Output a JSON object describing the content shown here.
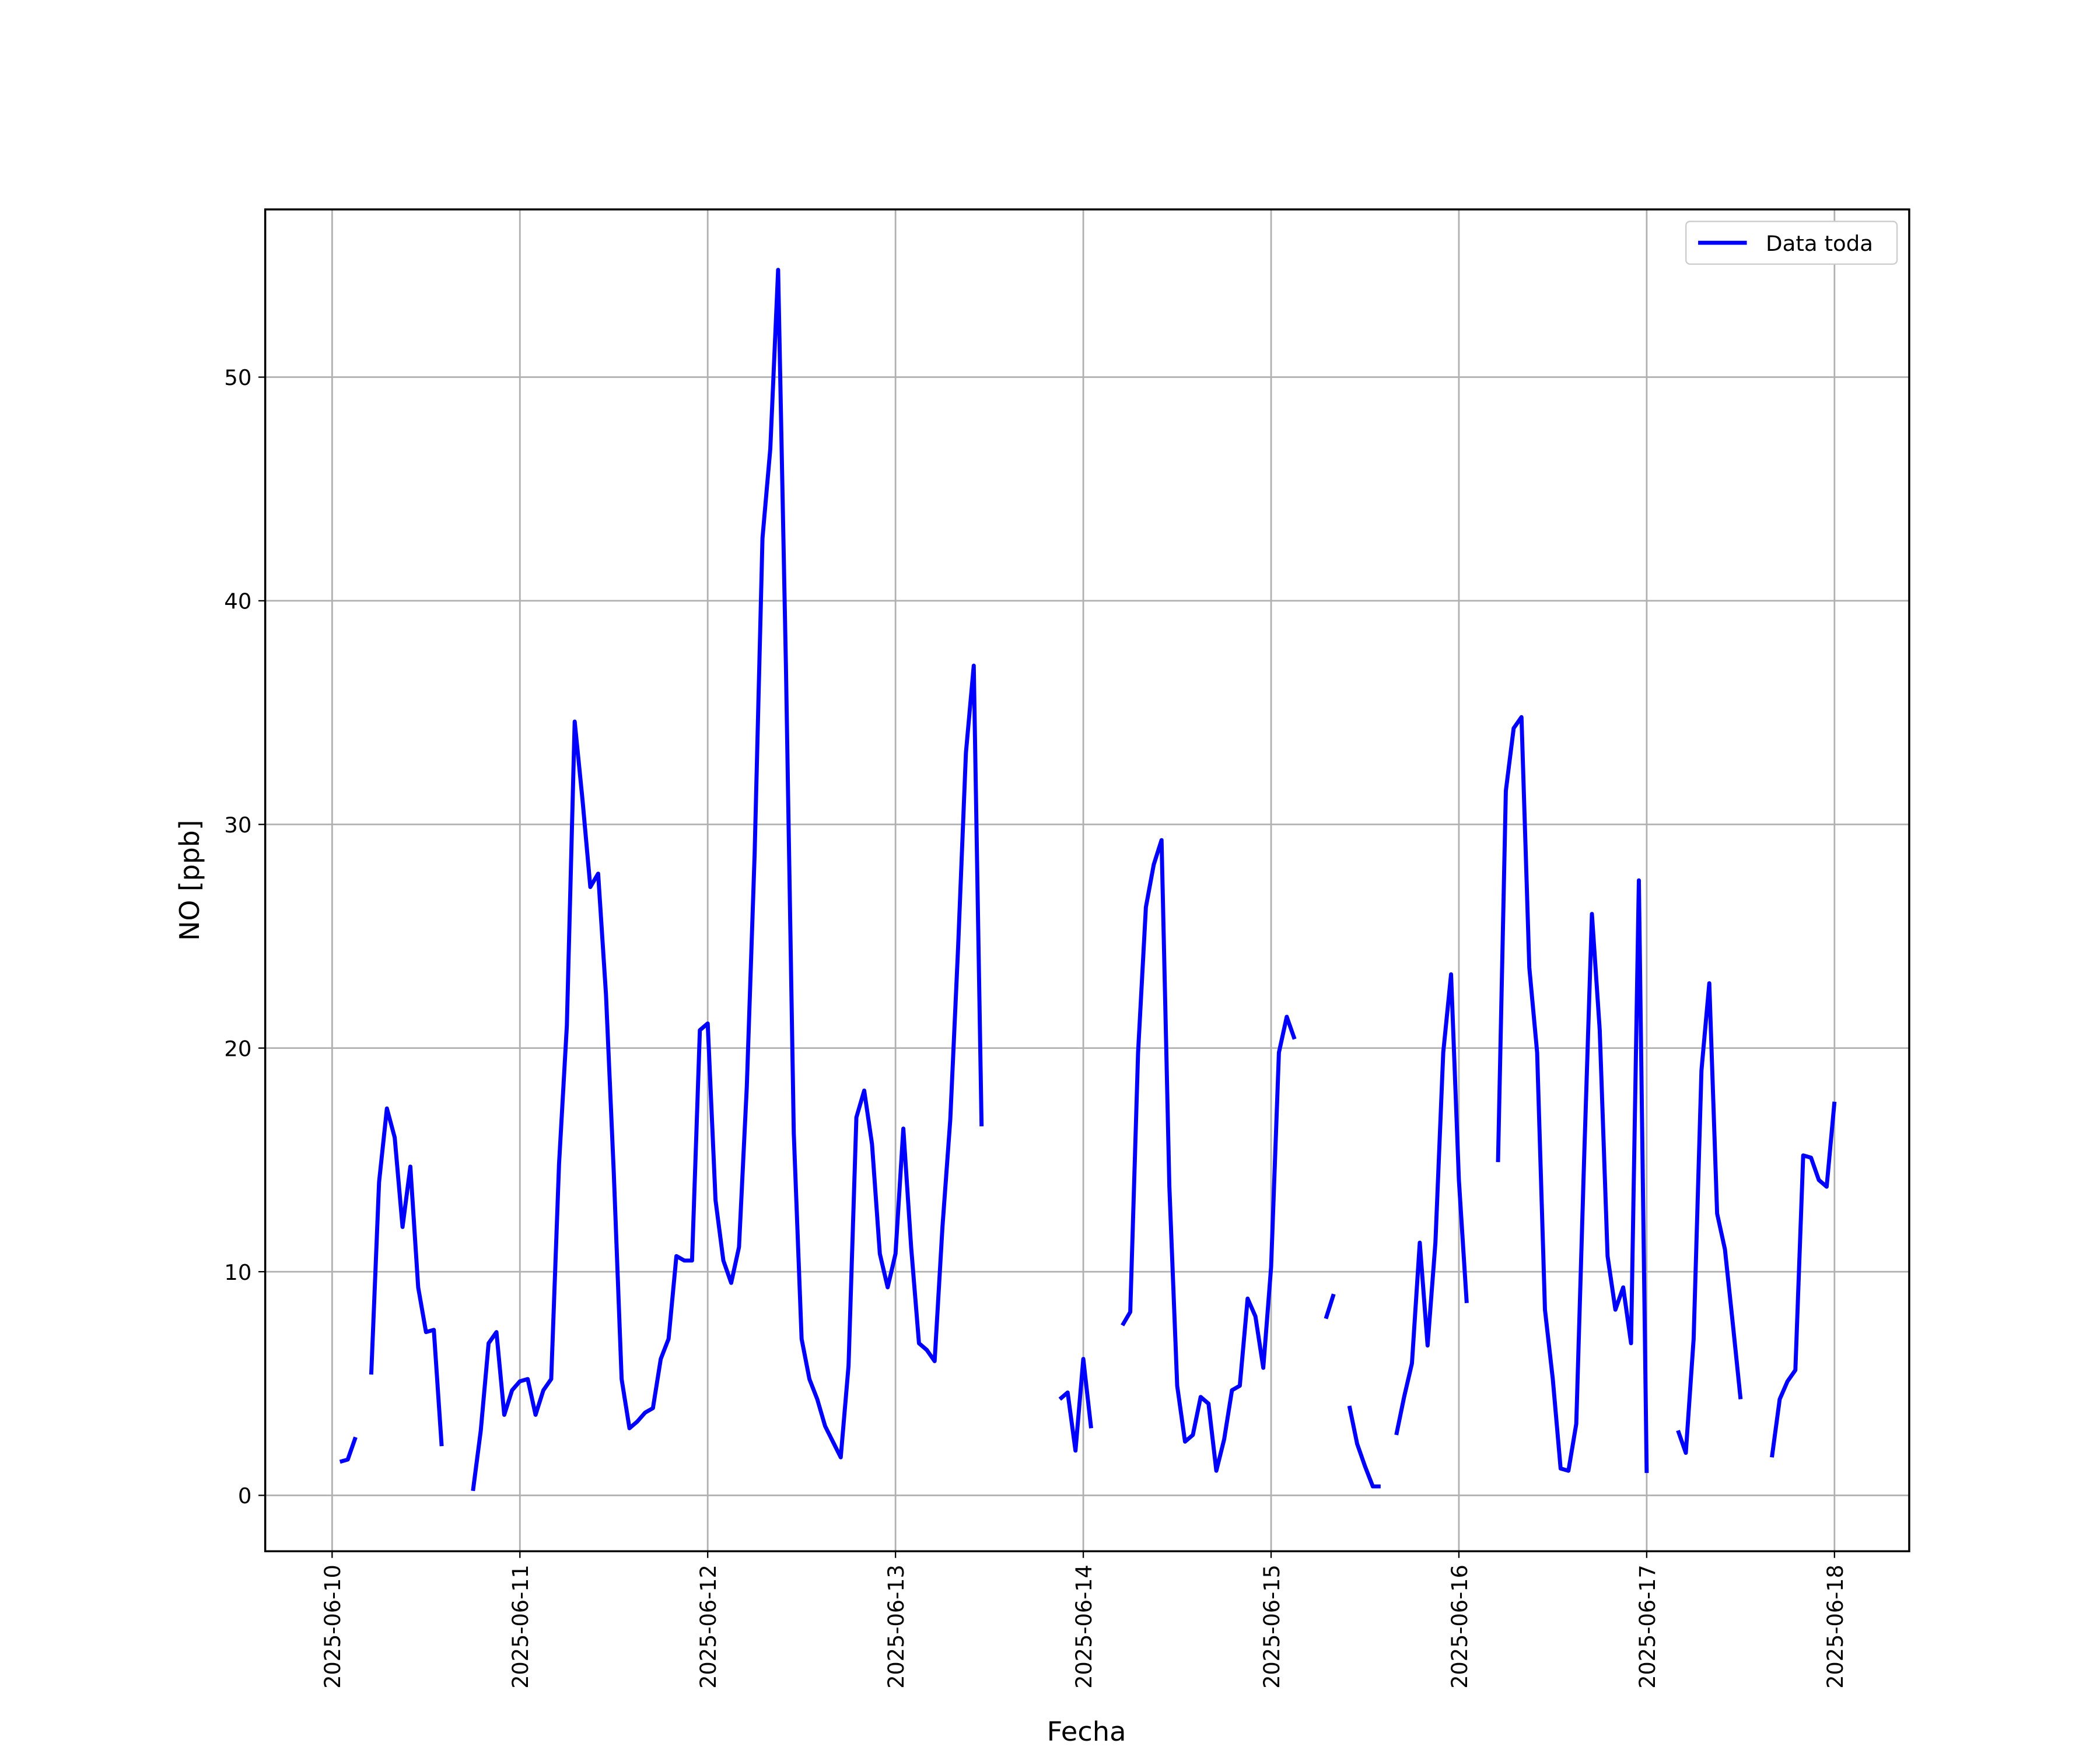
{
  "chart_data": {
    "type": "line",
    "xlabel": "Fecha",
    "ylabel": "NO [ppb]",
    "x": [
      1,
      2,
      3,
      4,
      5,
      6,
      7,
      8,
      9,
      10,
      11,
      12,
      13,
      14,
      15,
      16,
      17,
      18,
      19,
      20,
      21,
      22,
      23,
      24,
      25,
      26,
      27,
      28,
      29,
      30,
      31,
      32,
      33,
      34,
      35,
      36,
      37,
      38,
      39,
      40,
      41,
      42,
      43,
      44,
      45,
      46,
      47,
      48,
      49,
      50,
      51,
      52,
      53,
      54,
      55,
      56,
      57,
      58,
      59,
      60,
      61,
      62,
      63,
      64,
      65,
      66,
      67,
      68,
      69,
      70,
      71,
      72,
      73,
      74,
      75,
      76,
      77,
      78,
      79,
      80,
      81,
      82,
      83,
      84,
      85,
      86,
      87,
      88,
      89,
      90,
      91,
      92,
      93,
      94,
      95,
      96,
      97,
      98,
      99,
      100,
      101,
      102,
      103,
      104,
      105,
      106,
      107,
      108,
      109,
      110,
      111,
      112,
      113,
      114,
      115,
      116,
      117,
      118,
      119,
      120,
      121,
      122,
      123,
      124,
      125,
      126,
      127,
      128,
      129,
      130,
      131,
      132,
      133,
      134,
      135,
      136,
      137,
      138,
      139,
      140,
      141,
      142,
      143,
      144,
      145,
      146,
      147,
      148,
      149,
      150,
      151,
      152,
      153,
      154,
      155,
      156,
      157,
      158,
      159,
      160,
      161,
      162,
      163,
      164,
      165,
      166,
      167,
      168,
      169,
      170,
      171,
      172,
      173,
      174,
      175,
      176,
      177,
      178,
      179,
      180,
      181,
      182,
      183,
      184,
      185,
      186,
      187,
      188,
      189,
      190,
      191,
      192
    ],
    "series": [
      {
        "name": "Data toda",
        "color": "#0000ff",
        "values": [
          1.5,
          1.6,
          2.6,
          null,
          5.4,
          14.0,
          17.3,
          16.0,
          12.0,
          14.7,
          9.3,
          7.3,
          7.4,
          2.2,
          null,
          null,
          null,
          0.2,
          2.9,
          6.8,
          7.3,
          3.6,
          4.7,
          5.1,
          5.2,
          3.6,
          4.7,
          5.2,
          14.8,
          21.0,
          34.6,
          31.1,
          27.2,
          27.8,
          22.4,
          14.4,
          5.2,
          3.0,
          3.3,
          3.7,
          3.9,
          6.1,
          7.0,
          10.7,
          10.5,
          10.5,
          20.8,
          21.1,
          13.2,
          10.5,
          9.5,
          11.1,
          18.3,
          28.7,
          42.8,
          46.8,
          54.8,
          37.0,
          16.2,
          7.0,
          5.2,
          4.3,
          3.1,
          2.4,
          1.7,
          5.8,
          16.9,
          18.1,
          15.7,
          10.8,
          9.3,
          10.8,
          16.4,
          11.1,
          6.8,
          6.5,
          6.0,
          12.0,
          16.8,
          24.5,
          33.2,
          37.1,
          16.5,
          null,
          null,
          null,
          null,
          null,
          null,
          null,
          null,
          null,
          4.3,
          4.6,
          2.0,
          6.1,
          3.0,
          null,
          null,
          null,
          7.6,
          8.2,
          19.8,
          26.3,
          28.2,
          29.3,
          13.8,
          4.9,
          2.4,
          2.7,
          4.4,
          4.1,
          1.1,
          2.5,
          4.7,
          4.9,
          8.8,
          8.0,
          5.7,
          10.2,
          19.8,
          21.4,
          20.4,
          null,
          null,
          null,
          7.9,
          9.0,
          null,
          4.0,
          2.3,
          1.3,
          0.4,
          0.4,
          null,
          2.7,
          4.4,
          5.9,
          11.3,
          6.7,
          11.3,
          19.8,
          23.3,
          14.1,
          8.6,
          null,
          null,
          null,
          14.9,
          31.5,
          34.3,
          34.8,
          23.6,
          19.8,
          8.3,
          5.2,
          1.2,
          1.1,
          3.2,
          15.0,
          26.0,
          20.8,
          10.7,
          8.3,
          9.3,
          6.8,
          27.5,
          1.0,
          null,
          null,
          null,
          2.9,
          1.9,
          7.0,
          19.0,
          22.9,
          12.6,
          11.0,
          7.7,
          4.3,
          null,
          null,
          null,
          1.7,
          4.3,
          5.1,
          5.6,
          15.2,
          15.1,
          14.1,
          13.8,
          17.6
        ]
      }
    ],
    "xlim": [
      -8.55,
      201.55
    ],
    "ylim": [
      -2.5,
      57.5
    ],
    "xticks": [
      {
        "value": 0,
        "label": "2025-06-10"
      },
      {
        "value": 24,
        "label": "2025-06-11"
      },
      {
        "value": 48,
        "label": "2025-06-12"
      },
      {
        "value": 72,
        "label": "2025-06-13"
      },
      {
        "value": 96,
        "label": "2025-06-14"
      },
      {
        "value": 120,
        "label": "2025-06-15"
      },
      {
        "value": 144,
        "label": "2025-06-16"
      },
      {
        "value": 168,
        "label": "2025-06-17"
      },
      {
        "value": 192,
        "label": "2025-06-18"
      }
    ],
    "yticks": [
      0,
      10,
      20,
      30,
      40,
      50
    ],
    "grid": true,
    "legend": "upper right"
  }
}
